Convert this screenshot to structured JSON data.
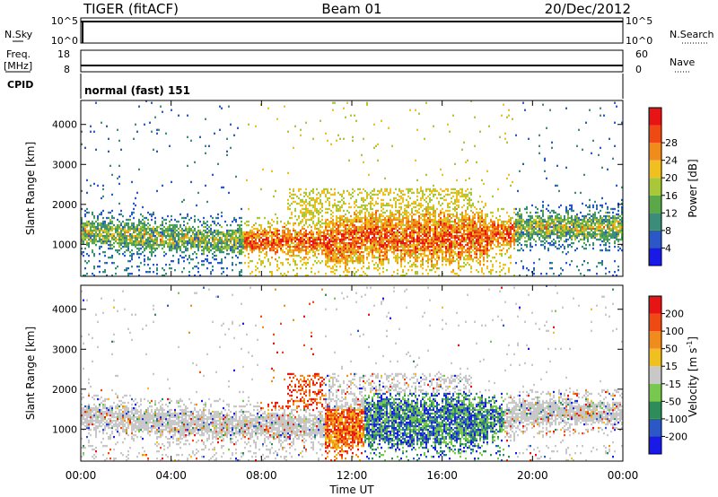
{
  "header": {
    "title": "TIGER (fitACF)",
    "beam": "Beam 01",
    "date": "20/Dec/2012"
  },
  "top_panels": {
    "nsky_label": "N.Sky",
    "nsearch_label": "N.Search",
    "nsky_ticks": [
      "10^5",
      "10^0"
    ],
    "nsearch_ticks": [
      "10^5",
      "10^0"
    ],
    "freq_label_1": "Freq.",
    "freq_label_2": "[MHz]",
    "freq_ticks": [
      "18",
      "8"
    ],
    "nave_label": "Nave",
    "nave_ticks": [
      "60",
      "0"
    ],
    "cpid_label": "CPID",
    "cpid_value": "normal (fast) 151"
  },
  "chart_data": [
    {
      "type": "heatmap",
      "name": "power-panel",
      "ylabel": "Slant Range [km]",
      "yticks": [
        1000,
        2000,
        3000,
        4000
      ],
      "ylim": [
        200,
        4600
      ],
      "colorbar_label": "Power [dB]",
      "colorbar_ticks": [
        4,
        8,
        12,
        16,
        20,
        24,
        28
      ],
      "colors": [
        "#1a1ae6",
        "#2b58c6",
        "#3c8c7a",
        "#5aa84a",
        "#a8c83a",
        "#f0c020",
        "#f08c1c",
        "#f04a14",
        "#e61414"
      ]
    },
    {
      "type": "heatmap",
      "name": "velocity-panel",
      "ylabel": "Slant Range [km]",
      "yticks": [
        1000,
        2000,
        3000,
        4000
      ],
      "ylim": [
        200,
        4600
      ],
      "colorbar_label": "Velocity [m s",
      "colorbar_label_sup": "-1",
      "colorbar_label_end": "]",
      "colorbar_ticks": [
        200,
        100,
        50,
        15,
        -15,
        -50,
        -100,
        -200
      ],
      "colors": [
        "#1a1ae6",
        "#2b58c6",
        "#2e8c5a",
        "#78c850",
        "#c8c8c8",
        "#f0c020",
        "#f08c1c",
        "#f04a14",
        "#e61414"
      ]
    }
  ],
  "xaxis": {
    "ticks": [
      "00:00",
      "04:00",
      "08:00",
      "12:00",
      "16:00",
      "20:00",
      "00:00"
    ],
    "label": "Time UT"
  }
}
